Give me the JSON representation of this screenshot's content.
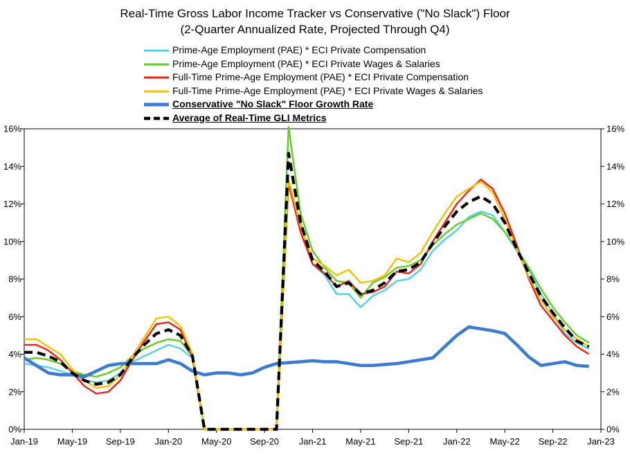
{
  "chart_data": {
    "type": "line",
    "title": "Real-Time Gross Labor Income Tracker  vs Conservative (\"No Slack\") Floor",
    "subtitle": "(2-Quarter Annualized Rate, Projected Through Q4)",
    "x_tick_labels": [
      "Jan-19",
      "May-19",
      "Sep-19",
      "Jan-20",
      "May-20",
      "Sep-20",
      "Jan-21",
      "May-21",
      "Sep-21",
      "Jan-22",
      "May-22",
      "Sep-22",
      "Jan-23"
    ],
    "y_tick_labels": [
      "0%",
      "2%",
      "4%",
      "6%",
      "8%",
      "10%",
      "12%",
      "14%",
      "16%"
    ],
    "ylim": [
      0,
      16
    ],
    "x_range_months": [
      0,
      48
    ],
    "x_start": "Jan-2019",
    "series": [
      {
        "name": "Prime-Age Employment (PAE) * ECI Private Compensation",
        "color": "#4fd3e3",
        "width": 2.4,
        "dash": "",
        "x": [
          0,
          1,
          2,
          3,
          4,
          5,
          6,
          7,
          8,
          9,
          10,
          11,
          12,
          13,
          14,
          15,
          21,
          22,
          23,
          24,
          25,
          26,
          27,
          28,
          29,
          30,
          31,
          32,
          33,
          34,
          35,
          36,
          37,
          38,
          39,
          40,
          41,
          42,
          43,
          44,
          45,
          46,
          47
        ],
        "values": [
          3.5,
          3.4,
          3.3,
          3.1,
          2.9,
          2.6,
          2.5,
          2.6,
          3.0,
          3.6,
          3.9,
          4.2,
          4.5,
          4.3,
          3.8,
          0,
          0,
          13.0,
          11.0,
          8.8,
          8.2,
          7.2,
          7.2,
          6.5,
          7.1,
          7.4,
          7.9,
          8.0,
          8.5,
          9.5,
          10.1,
          10.6,
          11.3,
          11.6,
          11.4,
          10.5,
          9.5,
          8.5,
          7.2,
          6.2,
          5.1,
          4.6,
          4.3
        ]
      },
      {
        "name": "Prime-Age Employment (PAE) * ECI Private Wages & Salaries",
        "color": "#5ecf1f",
        "width": 2.4,
        "dash": "",
        "x": [
          0,
          1,
          2,
          3,
          4,
          5,
          6,
          7,
          8,
          9,
          10,
          11,
          12,
          13,
          14,
          15,
          21,
          22,
          23,
          24,
          25,
          26,
          27,
          28,
          29,
          30,
          31,
          32,
          33,
          34,
          35,
          36,
          37,
          38,
          39,
          40,
          41,
          42,
          43,
          44,
          45,
          46,
          47
        ],
        "values": [
          3.7,
          3.8,
          3.7,
          3.5,
          3.1,
          2.9,
          2.8,
          3.0,
          3.3,
          3.9,
          4.3,
          4.6,
          4.8,
          4.7,
          3.9,
          0,
          0,
          16.1,
          11.5,
          9.5,
          8.6,
          7.9,
          7.8,
          7.0,
          7.8,
          8.1,
          8.6,
          8.7,
          9.0,
          9.8,
          10.4,
          10.9,
          11.2,
          11.5,
          11.2,
          10.5,
          9.6,
          8.6,
          7.5,
          6.5,
          5.7,
          5.0,
          4.6
        ]
      },
      {
        "name": "Full-Time Prime-Age Employment (PAE) * ECI Private Compensation",
        "color": "#f02010",
        "width": 2.4,
        "dash": "",
        "x": [
          0,
          1,
          2,
          3,
          4,
          5,
          6,
          7,
          8,
          9,
          10,
          11,
          12,
          13,
          14,
          15,
          21,
          22,
          23,
          24,
          25,
          26,
          27,
          28,
          29,
          30,
          31,
          32,
          33,
          34,
          35,
          36,
          37,
          38,
          39,
          40,
          41,
          42,
          43,
          44,
          45,
          46,
          47
        ],
        "values": [
          4.5,
          4.5,
          4.2,
          3.7,
          3.0,
          2.3,
          1.9,
          2.0,
          2.6,
          3.7,
          4.7,
          5.6,
          5.7,
          5.3,
          3.8,
          0,
          0,
          13.1,
          10.5,
          8.8,
          8.3,
          7.6,
          7.9,
          7.2,
          7.3,
          7.6,
          8.4,
          8.3,
          8.8,
          10.0,
          11.0,
          12.0,
          12.7,
          13.3,
          12.8,
          11.5,
          9.8,
          8.0,
          6.6,
          5.8,
          5.0,
          4.4,
          4.0
        ]
      },
      {
        "name": "Full-Time Prime-Age Employment (PAE) * ECI Private Wages & Salaries",
        "color": "#f5c000",
        "width": 2.4,
        "dash": "",
        "x": [
          0,
          1,
          2,
          3,
          4,
          5,
          6,
          7,
          8,
          9,
          10,
          11,
          12,
          13,
          14,
          15,
          21,
          22,
          23,
          24,
          25,
          26,
          27,
          28,
          29,
          30,
          31,
          32,
          33,
          34,
          35,
          36,
          37,
          38,
          39,
          40,
          41,
          42,
          43,
          44,
          45,
          46,
          47
        ],
        "values": [
          4.8,
          4.8,
          4.4,
          4.0,
          3.2,
          2.6,
          2.2,
          2.3,
          2.9,
          3.9,
          4.9,
          5.9,
          6.0,
          5.5,
          4.0,
          0,
          0,
          13.3,
          10.8,
          9.1,
          8.7,
          8.2,
          8.5,
          7.8,
          7.9,
          8.2,
          9.1,
          8.9,
          9.4,
          10.5,
          11.5,
          12.4,
          12.8,
          13.2,
          12.6,
          11.2,
          9.6,
          8.1,
          6.9,
          6.0,
          5.3,
          4.8,
          4.4
        ]
      },
      {
        "name": "Conservative \"No Slack\" Floor Growth Rate",
        "color": "#3d7bd1",
        "width": 4.6,
        "dash": "",
        "x": [
          0,
          2,
          3,
          4,
          5,
          6,
          7,
          8,
          9,
          10,
          11,
          12,
          13,
          14,
          15,
          16,
          17,
          18,
          19,
          20,
          21,
          22,
          23,
          24,
          25,
          26,
          27,
          28,
          29,
          30,
          31,
          32,
          33,
          34,
          35,
          36,
          37,
          38,
          39,
          40,
          41,
          42,
          43,
          44,
          45,
          46,
          47
        ],
        "values": [
          3.8,
          3.0,
          2.9,
          2.9,
          2.8,
          3.1,
          3.4,
          3.5,
          3.5,
          3.5,
          3.5,
          3.7,
          3.5,
          3.1,
          2.9,
          3.0,
          3.0,
          2.9,
          3.0,
          3.3,
          3.5,
          3.55,
          3.6,
          3.65,
          3.6,
          3.6,
          3.5,
          3.4,
          3.4,
          3.45,
          3.5,
          3.6,
          3.7,
          3.8,
          4.4,
          5.0,
          5.45,
          5.35,
          5.25,
          5.1,
          4.5,
          3.85,
          3.4,
          3.5,
          3.6,
          3.4,
          3.35
        ]
      },
      {
        "name": "Average of Real-Time GLI Metrics",
        "color": "#000000",
        "width": 4.2,
        "dash": "12,7",
        "x": [
          0,
          1,
          2,
          3,
          4,
          5,
          6,
          7,
          8,
          9,
          10,
          11,
          12,
          13,
          14,
          15,
          21,
          22,
          23,
          24,
          25,
          26,
          27,
          28,
          29,
          30,
          31,
          32,
          33,
          34,
          35,
          36,
          37,
          38,
          39,
          40,
          41,
          42,
          43,
          44,
          45,
          46,
          47
        ],
        "values": [
          4.1,
          4.1,
          3.9,
          3.6,
          3.0,
          2.6,
          2.4,
          2.5,
          2.9,
          3.8,
          4.5,
          5.1,
          5.3,
          5.0,
          3.9,
          0,
          0,
          14.7,
          11.0,
          9.0,
          8.4,
          7.6,
          7.8,
          7.2,
          7.4,
          7.8,
          8.4,
          8.5,
          8.9,
          9.9,
          10.8,
          11.6,
          12.1,
          12.4,
          12.0,
          11.0,
          9.6,
          8.3,
          7.1,
          6.2,
          5.4,
          4.7,
          4.4
        ]
      }
    ],
    "legend_position": "top-center"
  }
}
